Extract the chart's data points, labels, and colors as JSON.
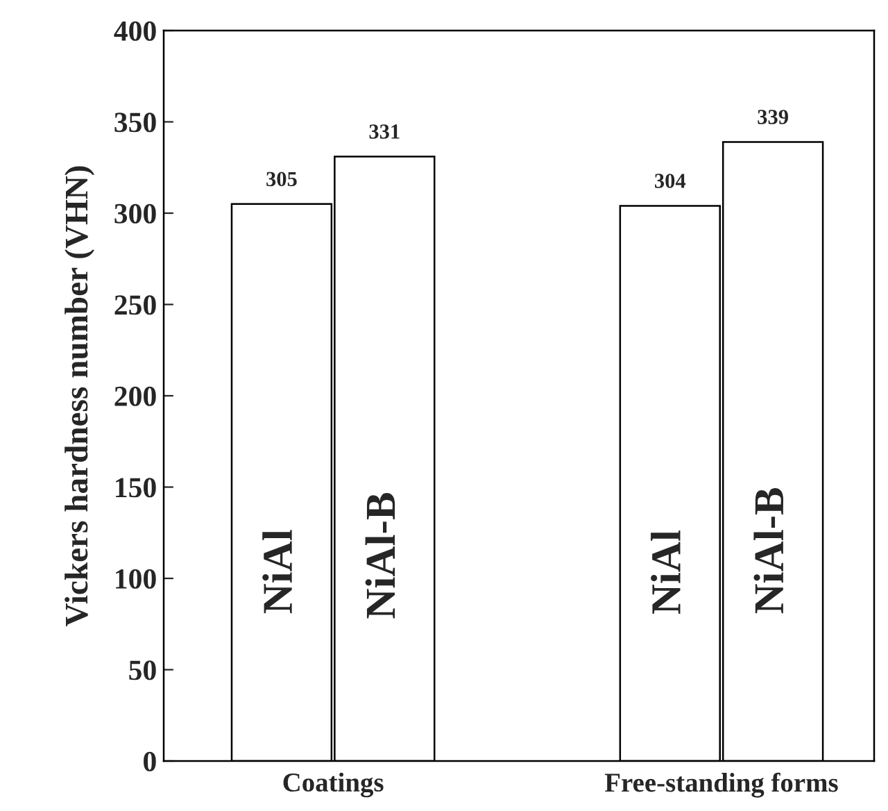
{
  "chart_data": {
    "type": "bar",
    "ylabel": "Vickers hardness number (VHN)",
    "categories": [
      "Coatings",
      "Free-standing forms"
    ],
    "series": [
      {
        "name": "NiAl",
        "color": "#ffffff",
        "values": [
          305,
          304
        ]
      },
      {
        "name": "NiAl-B",
        "color": "#ffffff",
        "values": [
          331,
          339
        ]
      }
    ],
    "ylim": [
      0,
      400
    ],
    "yticks": [
      0,
      50,
      100,
      150,
      200,
      250,
      300,
      350,
      400
    ],
    "data_labels": true,
    "grid": false,
    "legend": false
  }
}
